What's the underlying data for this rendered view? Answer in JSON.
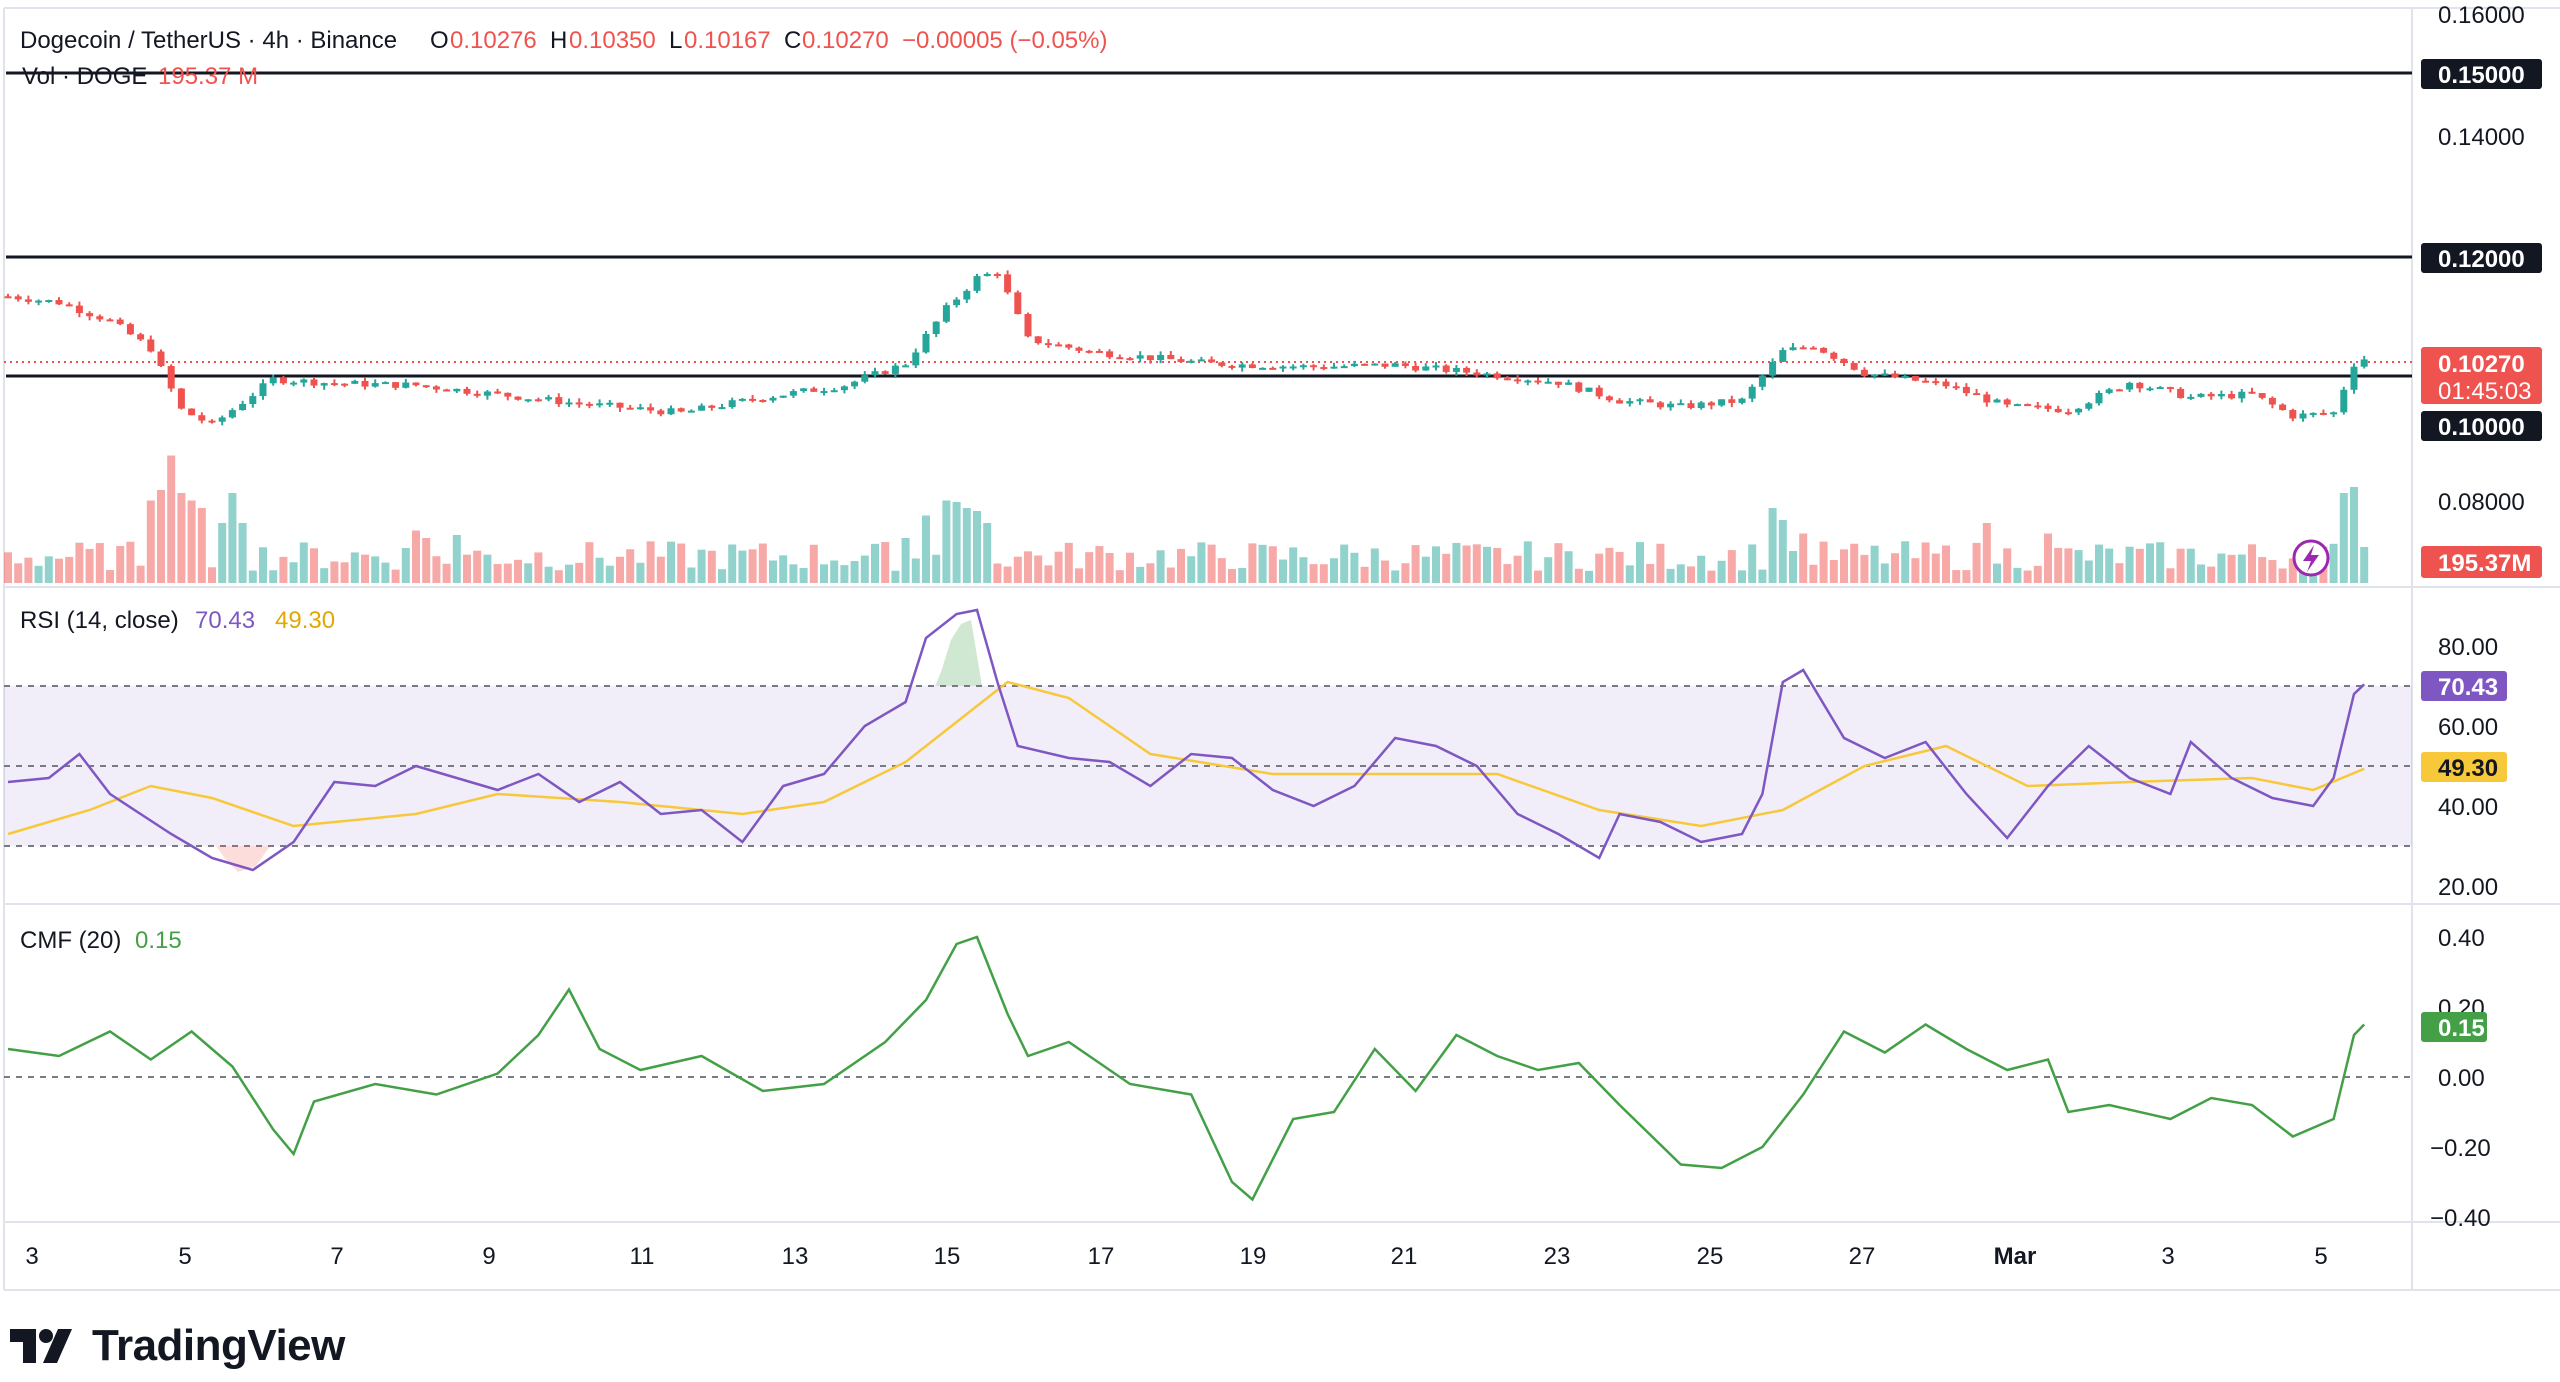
{
  "header": {
    "symbol": "Dogecoin / TetherUS · 4h · Binance",
    "o_label": "O",
    "o_value": "0.10276",
    "h_label": "H",
    "h_value": "0.10350",
    "l_label": "L",
    "l_value": "0.10167",
    "c_label": "C",
    "c_value": "0.10270",
    "change": "−0.00005 (−0.05%)",
    "vol_label": "Vol · DOGE",
    "vol_value": "195.37 M"
  },
  "colors": {
    "up": "#26a69a",
    "down": "#ef5350",
    "rsi": "#7e57c2",
    "rsi_ma": "#f7c83a",
    "cmf": "#43a047",
    "level": "#131722",
    "grid": "#f0f3fa"
  },
  "price_axis": {
    "ticks": [
      "0.16000",
      "0.14000",
      "0.08000"
    ],
    "levels": [
      "0.15000",
      "0.12000",
      "0.10000"
    ],
    "last_price": "0.10270",
    "countdown": "01:45:03",
    "volume_badge": "195.37M"
  },
  "rsi": {
    "label": "RSI (14, close)",
    "value": "70.43",
    "ma_value": "49.30",
    "ticks": [
      "80.00",
      "60.00",
      "40.00",
      "20.00"
    ]
  },
  "cmf": {
    "label": "CMF (20)",
    "value": "0.15",
    "ticks": [
      "0.40",
      "0.20",
      "0.00",
      "−0.20",
      "−0.40"
    ]
  },
  "time_axis": {
    "labels": [
      "3",
      "5",
      "7",
      "9",
      "11",
      "13",
      "15",
      "17",
      "19",
      "21",
      "23",
      "25",
      "27",
      "Mar",
      "3",
      "5"
    ]
  },
  "brand": {
    "name": "TradingView",
    "icon": "tradingview-logo-icon"
  },
  "chart_data": [
    {
      "type": "candlestick",
      "title": "Dogecoin / TetherUS · 4h · Binance",
      "levels": [
        0.15,
        0.12,
        0.1
      ],
      "ylim": [
        0.07,
        0.16
      ],
      "anchors": [
        {
          "t": 0,
          "p": 0.113
        },
        {
          "t": 5,
          "p": 0.112
        },
        {
          "t": 10,
          "p": 0.109
        },
        {
          "t": 14,
          "p": 0.1045
        },
        {
          "t": 17,
          "p": 0.0945
        },
        {
          "t": 20,
          "p": 0.092
        },
        {
          "t": 26,
          "p": 0.0995
        },
        {
          "t": 32,
          "p": 0.0988
        },
        {
          "t": 40,
          "p": 0.0985
        },
        {
          "t": 48,
          "p": 0.097
        },
        {
          "t": 56,
          "p": 0.0955
        },
        {
          "t": 66,
          "p": 0.094
        },
        {
          "t": 74,
          "p": 0.0965
        },
        {
          "t": 82,
          "p": 0.0985
        },
        {
          "t": 88,
          "p": 0.102
        },
        {
          "t": 92,
          "p": 0.111
        },
        {
          "t": 95,
          "p": 0.116
        },
        {
          "t": 97,
          "p": 0.117
        },
        {
          "t": 100,
          "p": 0.106
        },
        {
          "t": 106,
          "p": 0.104
        },
        {
          "t": 118,
          "p": 0.102
        },
        {
          "t": 128,
          "p": 0.1015
        },
        {
          "t": 136,
          "p": 0.1018
        },
        {
          "t": 144,
          "p": 0.1005
        },
        {
          "t": 152,
          "p": 0.099
        },
        {
          "t": 158,
          "p": 0.096
        },
        {
          "t": 164,
          "p": 0.095
        },
        {
          "t": 170,
          "p": 0.096
        },
        {
          "t": 174,
          "p": 0.104
        },
        {
          "t": 177,
          "p": 0.105
        },
        {
          "t": 182,
          "p": 0.1005
        },
        {
          "t": 190,
          "p": 0.0985
        },
        {
          "t": 196,
          "p": 0.095
        },
        {
          "t": 202,
          "p": 0.0945
        },
        {
          "t": 208,
          "p": 0.099
        },
        {
          "t": 214,
          "p": 0.0965
        },
        {
          "t": 220,
          "p": 0.097
        },
        {
          "t": 224,
          "p": 0.0935
        },
        {
          "t": 228,
          "p": 0.094
        },
        {
          "t": 230,
          "p": 0.102
        },
        {
          "t": 231,
          "p": 0.103
        }
      ]
    },
    {
      "type": "bar",
      "title": "Vol · DOGE",
      "last_value": "195.37M"
    },
    {
      "type": "line",
      "title": "RSI (14, close)",
      "ylim": [
        17,
        91
      ],
      "bands": [
        30,
        50,
        70
      ],
      "series": [
        {
          "name": "RSI",
          "points": [
            {
              "t": 0,
              "v": 46
            },
            {
              "t": 4,
              "v": 47
            },
            {
              "t": 7,
              "v": 53
            },
            {
              "t": 10,
              "v": 43
            },
            {
              "t": 13,
              "v": 38
            },
            {
              "t": 16,
              "v": 33
            },
            {
              "t": 20,
              "v": 27
            },
            {
              "t": 24,
              "v": 24
            },
            {
              "t": 28,
              "v": 31
            },
            {
              "t": 32,
              "v": 46
            },
            {
              "t": 36,
              "v": 45
            },
            {
              "t": 40,
              "v": 50
            },
            {
              "t": 44,
              "v": 47
            },
            {
              "t": 48,
              "v": 44
            },
            {
              "t": 52,
              "v": 48
            },
            {
              "t": 56,
              "v": 41
            },
            {
              "t": 60,
              "v": 46
            },
            {
              "t": 64,
              "v": 38
            },
            {
              "t": 68,
              "v": 39
            },
            {
              "t": 72,
              "v": 31
            },
            {
              "t": 76,
              "v": 45
            },
            {
              "t": 80,
              "v": 48
            },
            {
              "t": 84,
              "v": 60
            },
            {
              "t": 88,
              "v": 66
            },
            {
              "t": 90,
              "v": 82
            },
            {
              "t": 93,
              "v": 88
            },
            {
              "t": 95,
              "v": 89
            },
            {
              "t": 97,
              "v": 71
            },
            {
              "t": 99,
              "v": 55
            },
            {
              "t": 104,
              "v": 52
            },
            {
              "t": 108,
              "v": 51
            },
            {
              "t": 112,
              "v": 45
            },
            {
              "t": 116,
              "v": 53
            },
            {
              "t": 120,
              "v": 52
            },
            {
              "t": 124,
              "v": 44
            },
            {
              "t": 128,
              "v": 40
            },
            {
              "t": 132,
              "v": 45
            },
            {
              "t": 136,
              "v": 57
            },
            {
              "t": 140,
              "v": 55
            },
            {
              "t": 144,
              "v": 50
            },
            {
              "t": 148,
              "v": 38
            },
            {
              "t": 152,
              "v": 33
            },
            {
              "t": 156,
              "v": 27
            },
            {
              "t": 158,
              "v": 38
            },
            {
              "t": 162,
              "v": 36
            },
            {
              "t": 166,
              "v": 31
            },
            {
              "t": 170,
              "v": 33
            },
            {
              "t": 172,
              "v": 43
            },
            {
              "t": 174,
              "v": 71
            },
            {
              "t": 176,
              "v": 74
            },
            {
              "t": 180,
              "v": 57
            },
            {
              "t": 184,
              "v": 52
            },
            {
              "t": 188,
              "v": 56
            },
            {
              "t": 192,
              "v": 43
            },
            {
              "t": 196,
              "v": 32
            },
            {
              "t": 200,
              "v": 45
            },
            {
              "t": 204,
              "v": 55
            },
            {
              "t": 208,
              "v": 47
            },
            {
              "t": 212,
              "v": 43
            },
            {
              "t": 214,
              "v": 56
            },
            {
              "t": 218,
              "v": 47
            },
            {
              "t": 222,
              "v": 42
            },
            {
              "t": 226,
              "v": 40
            },
            {
              "t": 228,
              "v": 47
            },
            {
              "t": 230,
              "v": 68
            },
            {
              "t": 231,
              "v": 70.43
            }
          ]
        },
        {
          "name": "RSI-based MA",
          "points": [
            {
              "t": 0,
              "v": 33
            },
            {
              "t": 8,
              "v": 39
            },
            {
              "t": 14,
              "v": 45
            },
            {
              "t": 20,
              "v": 42
            },
            {
              "t": 28,
              "v": 35
            },
            {
              "t": 40,
              "v": 38
            },
            {
              "t": 48,
              "v": 43
            },
            {
              "t": 60,
              "v": 41
            },
            {
              "t": 72,
              "v": 38
            },
            {
              "t": 80,
              "v": 41
            },
            {
              "t": 88,
              "v": 51
            },
            {
              "t": 94,
              "v": 63
            },
            {
              "t": 98,
              "v": 71
            },
            {
              "t": 104,
              "v": 67
            },
            {
              "t": 112,
              "v": 53
            },
            {
              "t": 124,
              "v": 48
            },
            {
              "t": 136,
              "v": 48
            },
            {
              "t": 146,
              "v": 48
            },
            {
              "t": 156,
              "v": 39
            },
            {
              "t": 166,
              "v": 35
            },
            {
              "t": 174,
              "v": 39
            },
            {
              "t": 182,
              "v": 50
            },
            {
              "t": 190,
              "v": 55
            },
            {
              "t": 198,
              "v": 45
            },
            {
              "t": 208,
              "v": 46
            },
            {
              "t": 220,
              "v": 47
            },
            {
              "t": 226,
              "v": 44
            },
            {
              "t": 231,
              "v": 49.3
            }
          ]
        }
      ]
    },
    {
      "type": "line",
      "title": "CMF (20)",
      "ylim": [
        -0.42,
        0.42
      ],
      "zero_line": 0,
      "series": [
        {
          "name": "CMF",
          "points": [
            {
              "t": 0,
              "v": 0.08
            },
            {
              "t": 5,
              "v": 0.06
            },
            {
              "t": 10,
              "v": 0.13
            },
            {
              "t": 14,
              "v": 0.05
            },
            {
              "t": 18,
              "v": 0.13
            },
            {
              "t": 22,
              "v": 0.03
            },
            {
              "t": 26,
              "v": -0.15
            },
            {
              "t": 28,
              "v": -0.22
            },
            {
              "t": 30,
              "v": -0.07
            },
            {
              "t": 36,
              "v": -0.02
            },
            {
              "t": 42,
              "v": -0.05
            },
            {
              "t": 48,
              "v": 0.01
            },
            {
              "t": 52,
              "v": 0.12
            },
            {
              "t": 55,
              "v": 0.25
            },
            {
              "t": 58,
              "v": 0.08
            },
            {
              "t": 62,
              "v": 0.02
            },
            {
              "t": 68,
              "v": 0.06
            },
            {
              "t": 74,
              "v": -0.04
            },
            {
              "t": 80,
              "v": -0.02
            },
            {
              "t": 86,
              "v": 0.1
            },
            {
              "t": 90,
              "v": 0.22
            },
            {
              "t": 93,
              "v": 0.38
            },
            {
              "t": 95,
              "v": 0.4
            },
            {
              "t": 98,
              "v": 0.18
            },
            {
              "t": 100,
              "v": 0.06
            },
            {
              "t": 104,
              "v": 0.1
            },
            {
              "t": 110,
              "v": -0.02
            },
            {
              "t": 116,
              "v": -0.05
            },
            {
              "t": 120,
              "v": -0.3
            },
            {
              "t": 122,
              "v": -0.35
            },
            {
              "t": 126,
              "v": -0.12
            },
            {
              "t": 130,
              "v": -0.1
            },
            {
              "t": 134,
              "v": 0.08
            },
            {
              "t": 138,
              "v": -0.04
            },
            {
              "t": 142,
              "v": 0.12
            },
            {
              "t": 146,
              "v": 0.06
            },
            {
              "t": 150,
              "v": 0.02
            },
            {
              "t": 154,
              "v": 0.04
            },
            {
              "t": 158,
              "v": -0.08
            },
            {
              "t": 164,
              "v": -0.25
            },
            {
              "t": 168,
              "v": -0.26
            },
            {
              "t": 172,
              "v": -0.2
            },
            {
              "t": 176,
              "v": -0.05
            },
            {
              "t": 180,
              "v": 0.13
            },
            {
              "t": 184,
              "v": 0.07
            },
            {
              "t": 188,
              "v": 0.15
            },
            {
              "t": 192,
              "v": 0.08
            },
            {
              "t": 196,
              "v": 0.02
            },
            {
              "t": 200,
              "v": 0.05
            },
            {
              "t": 202,
              "v": -0.1
            },
            {
              "t": 206,
              "v": -0.08
            },
            {
              "t": 212,
              "v": -0.12
            },
            {
              "t": 216,
              "v": -0.06
            },
            {
              "t": 220,
              "v": -0.08
            },
            {
              "t": 224,
              "v": -0.17
            },
            {
              "t": 228,
              "v": -0.12
            },
            {
              "t": 230,
              "v": 0.12
            },
            {
              "t": 231,
              "v": 0.15
            }
          ]
        }
      ]
    }
  ]
}
